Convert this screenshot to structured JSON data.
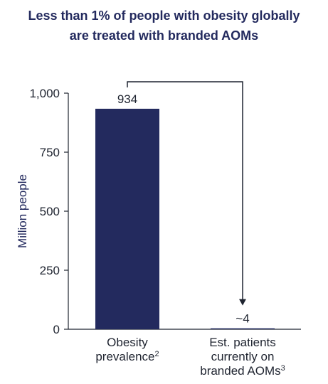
{
  "title_lines": [
    "Less than 1% of people with obesity globally",
    "are treated with branded AOMs"
  ],
  "chart_data": {
    "type": "bar",
    "title": "Less than 1% of people with obesity globally are treated with branded AOMs",
    "categories": [
      {
        "lines": [
          "Obesity",
          "prevalence"
        ],
        "superscript": "2"
      },
      {
        "lines": [
          "Est. patients",
          "currently on",
          "branded AOMs"
        ],
        "superscript": "3"
      }
    ],
    "values": [
      934,
      4
    ],
    "data_labels": [
      "934",
      "~4"
    ],
    "ylabel": "Million people",
    "ylim": [
      0,
      1000
    ],
    "yticks": [
      0,
      250,
      500,
      750,
      1000
    ],
    "ytick_labels": [
      "0",
      "250",
      "500",
      "750",
      "1,000"
    ],
    "grid": false,
    "bar_color": "#232a5e",
    "annotation": "arrow connecting the two bars"
  }
}
